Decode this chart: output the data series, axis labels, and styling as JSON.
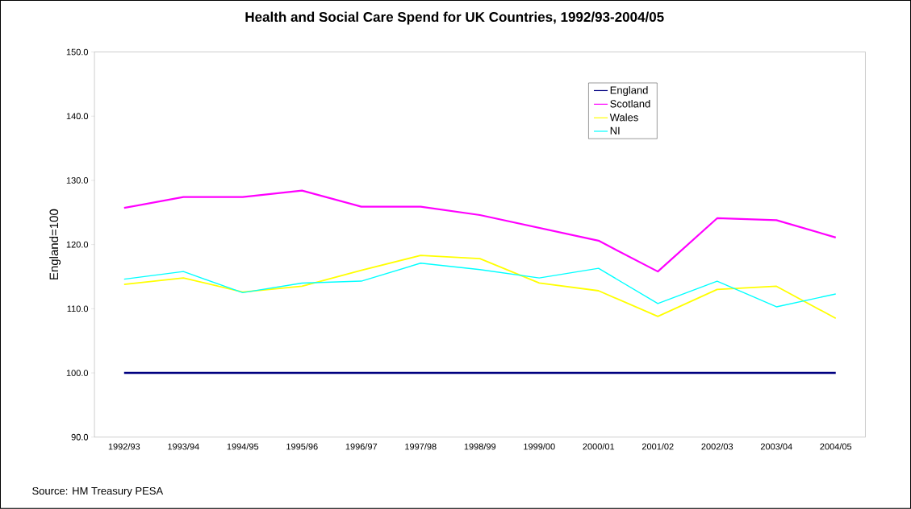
{
  "chart_data": {
    "type": "line",
    "title": "**Health and Social Care Spend for UK Countries, 1992/93-2004/05**",
    "ylabel": "England=100",
    "categories": [
      "1992/93",
      "1993/94",
      "1994/95",
      "1995/96",
      "1996/97",
      "1997/98",
      "1998/99",
      "1999/00",
      "2000/01",
      "2001/02",
      "2002/03",
      "2003/04",
      "2004/05"
    ],
    "series": [
      {
        "name": "England",
        "color": "#000080",
        "values": [
          100,
          100,
          100,
          100,
          100,
          100,
          100,
          100,
          100,
          100,
          100,
          100,
          100
        ]
      },
      {
        "name": "Scotland",
        "color": "#ff00ff",
        "values": [
          125.7,
          127.4,
          127.4,
          128.4,
          125.9,
          125.9,
          124.6,
          122.6,
          120.6,
          115.8,
          124.1,
          123.8,
          121.1
        ]
      },
      {
        "name": "Wales",
        "color": "#ffff00",
        "values": [
          113.8,
          114.8,
          112.6,
          113.5,
          116.0,
          118.3,
          117.8,
          114.0,
          112.8,
          108.8,
          113.0,
          113.5,
          108.5
        ]
      },
      {
        "name": "NI",
        "color": "#00ffff",
        "values": [
          114.6,
          115.8,
          112.5,
          114.0,
          114.3,
          117.1,
          116.1,
          114.8,
          116.3,
          110.8,
          114.3,
          110.3,
          112.3
        ]
      }
    ],
    "ylim": [
      90,
      150
    ],
    "yticks": [
      {
        "value": 90,
        "label": "90.0"
      },
      {
        "value": 100,
        "label": "100.0"
      },
      {
        "value": 110,
        "label": "110.0"
      },
      {
        "value": 120,
        "label": "120.0"
      },
      {
        "value": 130,
        "label": "130.0"
      },
      {
        "value": 140,
        "label": "140.0"
      },
      {
        "value": 150,
        "label": "150.0"
      }
    ],
    "grid": false,
    "legend": "top right",
    "marker": "none",
    "line_style": "solid",
    "annotations": [
      "Source: HM Treasury PESA"
    ]
  }
}
